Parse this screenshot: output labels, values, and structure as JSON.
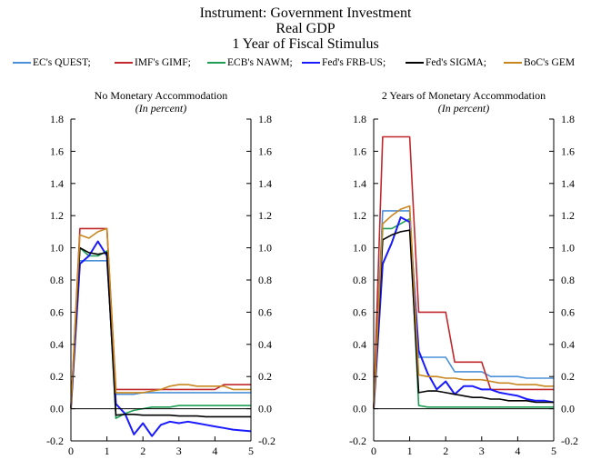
{
  "title": {
    "line1": "Instrument: Government Investment",
    "line2": "Real GDP",
    "line3": "1 Year of Fiscal Stimulus"
  },
  "legend": [
    {
      "label": "EC's QUEST;",
      "color": "#4a90d9"
    },
    {
      "label": "IMF's GIMF;",
      "color": "#c0282d"
    },
    {
      "label": "ECB's NAWM;",
      "color": "#1f9d55"
    },
    {
      "label": "Fed's FRB-US;",
      "color": "#1a1aff"
    },
    {
      "label": "Fed's SIGMA;",
      "color": "#000000"
    },
    {
      "label": "BoC's GEM",
      "color": "#c8861f"
    }
  ],
  "chart_data": [
    {
      "type": "line",
      "title": "No Monetary Accommodation",
      "subtitle": "(In percent)",
      "xlim": [
        0,
        5
      ],
      "ylim": [
        -0.2,
        1.8
      ],
      "x_ticks": [
        "0",
        "1",
        "2",
        "3",
        "4",
        "5"
      ],
      "y_ticks": [
        "-0.2",
        "0.0",
        "0.2",
        "0.4",
        "0.6",
        "0.8",
        "1.0",
        "1.2",
        "1.4",
        "1.6",
        "1.8"
      ],
      "grid": false,
      "series": [
        {
          "name": "EC's QUEST",
          "color": "#4a90d9",
          "x": [
            0,
            0.25,
            0.5,
            0.75,
            1,
            1.25,
            1.5,
            1.75,
            2,
            2.25,
            2.5,
            2.75,
            3,
            3.25,
            3.5,
            3.75,
            4,
            4.25,
            4.5,
            4.75,
            5
          ],
          "y": [
            0,
            0.92,
            0.92,
            0.92,
            0.92,
            0.09,
            0.09,
            0.09,
            0.1,
            0.1,
            0.1,
            0.1,
            0.1,
            0.1,
            0.1,
            0.1,
            0.1,
            0.1,
            0.1,
            0.1,
            0.1
          ]
        },
        {
          "name": "IMF's GIMF",
          "color": "#c0282d",
          "x": [
            0,
            0.25,
            0.5,
            0.75,
            1,
            1.25,
            1.5,
            1.75,
            2,
            2.25,
            2.5,
            2.75,
            3,
            3.25,
            3.5,
            3.75,
            4,
            4.25,
            4.5,
            4.75,
            5
          ],
          "y": [
            0,
            1.12,
            1.12,
            1.12,
            1.12,
            0.12,
            0.12,
            0.12,
            0.12,
            0.12,
            0.12,
            0.12,
            0.12,
            0.12,
            0.12,
            0.12,
            0.12,
            0.15,
            0.15,
            0.15,
            0.15
          ]
        },
        {
          "name": "ECB's NAWM",
          "color": "#1f9d55",
          "x": [
            0,
            0.25,
            0.5,
            0.75,
            1,
            1.25,
            1.5,
            1.75,
            2,
            2.25,
            2.5,
            2.75,
            3,
            3.25,
            3.5,
            3.75,
            4,
            4.25,
            4.5,
            4.75,
            5
          ],
          "y": [
            0,
            1.0,
            0.95,
            0.95,
            0.98,
            -0.06,
            -0.03,
            -0.01,
            0.0,
            0.01,
            0.01,
            0.01,
            0.02,
            0.02,
            0.02,
            0.02,
            0.02,
            0.02,
            0.02,
            0.02,
            0.02
          ]
        },
        {
          "name": "Fed's FRB-US",
          "color": "#1a1aff",
          "x": [
            0,
            0.25,
            0.5,
            0.75,
            1,
            1.25,
            1.5,
            1.75,
            2,
            2.25,
            2.5,
            2.75,
            3,
            3.25,
            3.5,
            3.75,
            4,
            4.25,
            4.5,
            4.75,
            5
          ],
          "y": [
            0,
            0.9,
            0.95,
            1.04,
            0.95,
            0.03,
            -0.03,
            -0.16,
            -0.09,
            -0.17,
            -0.1,
            -0.08,
            -0.09,
            -0.08,
            -0.09,
            -0.1,
            -0.11,
            -0.12,
            -0.13,
            -0.135,
            -0.14
          ]
        },
        {
          "name": "Fed's SIGMA",
          "color": "#000000",
          "x": [
            0,
            0.25,
            0.5,
            0.75,
            1,
            1.25,
            1.5,
            1.75,
            2,
            2.25,
            2.5,
            2.75,
            3,
            3.25,
            3.5,
            3.75,
            4,
            4.25,
            4.5,
            4.75,
            5
          ],
          "y": [
            0,
            1.0,
            0.97,
            0.96,
            0.97,
            -0.04,
            -0.035,
            -0.035,
            -0.04,
            -0.04,
            -0.04,
            -0.04,
            -0.045,
            -0.045,
            -0.045,
            -0.05,
            -0.05,
            -0.05,
            -0.05,
            -0.05,
            -0.05
          ]
        },
        {
          "name": "BoC's GEM",
          "color": "#c8861f",
          "x": [
            0,
            0.25,
            0.5,
            0.75,
            1,
            1.25,
            1.5,
            1.75,
            2,
            2.25,
            2.5,
            2.75,
            3,
            3.25,
            3.5,
            3.75,
            4,
            4.25,
            4.5,
            4.75,
            5
          ],
          "y": [
            0,
            1.08,
            1.06,
            1.1,
            1.12,
            0.1,
            0.1,
            0.1,
            0.1,
            0.11,
            0.12,
            0.14,
            0.15,
            0.15,
            0.14,
            0.14,
            0.14,
            0.14,
            0.12,
            0.12,
            0.12
          ]
        }
      ]
    },
    {
      "type": "line",
      "title": "2 Years of Monetary Accommodation",
      "subtitle": "(In percent)",
      "xlim": [
        0,
        5
      ],
      "ylim": [
        -0.2,
        1.8
      ],
      "x_ticks": [
        "0",
        "1",
        "2",
        "3",
        "4",
        "5"
      ],
      "y_ticks": [
        "-0.2",
        "0.0",
        "0.2",
        "0.4",
        "0.6",
        "0.8",
        "1.0",
        "1.2",
        "1.4",
        "1.6",
        "1.8"
      ],
      "grid": false,
      "series": [
        {
          "name": "EC's QUEST",
          "color": "#4a90d9",
          "x": [
            0,
            0.25,
            0.5,
            0.75,
            1,
            1.25,
            1.5,
            1.75,
            2,
            2.25,
            2.5,
            2.75,
            3,
            3.25,
            3.5,
            3.75,
            4,
            4.25,
            4.5,
            4.75,
            5
          ],
          "y": [
            0,
            1.23,
            1.23,
            1.23,
            1.23,
            0.32,
            0.32,
            0.32,
            0.32,
            0.23,
            0.23,
            0.23,
            0.23,
            0.2,
            0.2,
            0.2,
            0.2,
            0.19,
            0.19,
            0.19,
            0.19
          ]
        },
        {
          "name": "IMF's GIMF",
          "color": "#c0282d",
          "x": [
            0,
            0.25,
            0.5,
            0.75,
            1,
            1.25,
            1.5,
            1.75,
            2,
            2.25,
            2.5,
            2.75,
            3,
            3.25,
            3.5,
            3.75,
            4,
            4.25,
            4.5,
            4.75,
            5
          ],
          "y": [
            0,
            1.69,
            1.69,
            1.69,
            1.69,
            0.6,
            0.6,
            0.6,
            0.6,
            0.29,
            0.29,
            0.29,
            0.29,
            0.12,
            0.12,
            0.12,
            0.12,
            0.12,
            0.12,
            0.12,
            0.12
          ]
        },
        {
          "name": "ECB's NAWM",
          "color": "#1f9d55",
          "x": [
            0,
            0.25,
            0.5,
            0.75,
            1,
            1.25,
            1.5,
            1.75,
            2,
            2.25,
            2.5,
            2.75,
            3,
            3.25,
            3.5,
            3.75,
            4,
            4.25,
            4.5,
            4.75,
            5
          ],
          "y": [
            0,
            1.12,
            1.12,
            1.15,
            1.18,
            0.02,
            0.01,
            0.01,
            0.01,
            0.01,
            0.01,
            0.01,
            0.01,
            0.01,
            0.01,
            0.01,
            0.01,
            0.01,
            0.01,
            0.01,
            0.01
          ]
        },
        {
          "name": "Fed's FRB-US",
          "color": "#1a1aff",
          "x": [
            0,
            0.25,
            0.5,
            0.75,
            1,
            1.25,
            1.5,
            1.75,
            2,
            2.25,
            2.5,
            2.75,
            3,
            3.25,
            3.5,
            3.75,
            4,
            4.25,
            4.5,
            4.75,
            5
          ],
          "y": [
            0,
            0.9,
            1.03,
            1.19,
            1.16,
            0.36,
            0.22,
            0.12,
            0.17,
            0.09,
            0.14,
            0.14,
            0.12,
            0.12,
            0.1,
            0.09,
            0.08,
            0.06,
            0.05,
            0.05,
            0.04
          ]
        },
        {
          "name": "Fed's SIGMA",
          "color": "#000000",
          "x": [
            0,
            0.25,
            0.5,
            0.75,
            1,
            1.25,
            1.5,
            1.75,
            2,
            2.25,
            2.5,
            2.75,
            3,
            3.25,
            3.5,
            3.75,
            4,
            4.25,
            4.5,
            4.75,
            5
          ],
          "y": [
            0,
            1.05,
            1.08,
            1.1,
            1.11,
            0.1,
            0.11,
            0.11,
            0.1,
            0.09,
            0.08,
            0.07,
            0.07,
            0.06,
            0.06,
            0.05,
            0.05,
            0.05,
            0.04,
            0.04,
            0.04
          ]
        },
        {
          "name": "BoC's GEM",
          "color": "#c8861f",
          "x": [
            0,
            0.25,
            0.5,
            0.75,
            1,
            1.25,
            1.5,
            1.75,
            2,
            2.25,
            2.5,
            2.75,
            3,
            3.25,
            3.5,
            3.75,
            4,
            4.25,
            4.5,
            4.75,
            5
          ],
          "y": [
            0,
            1.15,
            1.2,
            1.24,
            1.26,
            0.21,
            0.2,
            0.2,
            0.19,
            0.19,
            0.18,
            0.18,
            0.18,
            0.17,
            0.16,
            0.16,
            0.15,
            0.15,
            0.15,
            0.14,
            0.14
          ]
        }
      ]
    }
  ]
}
